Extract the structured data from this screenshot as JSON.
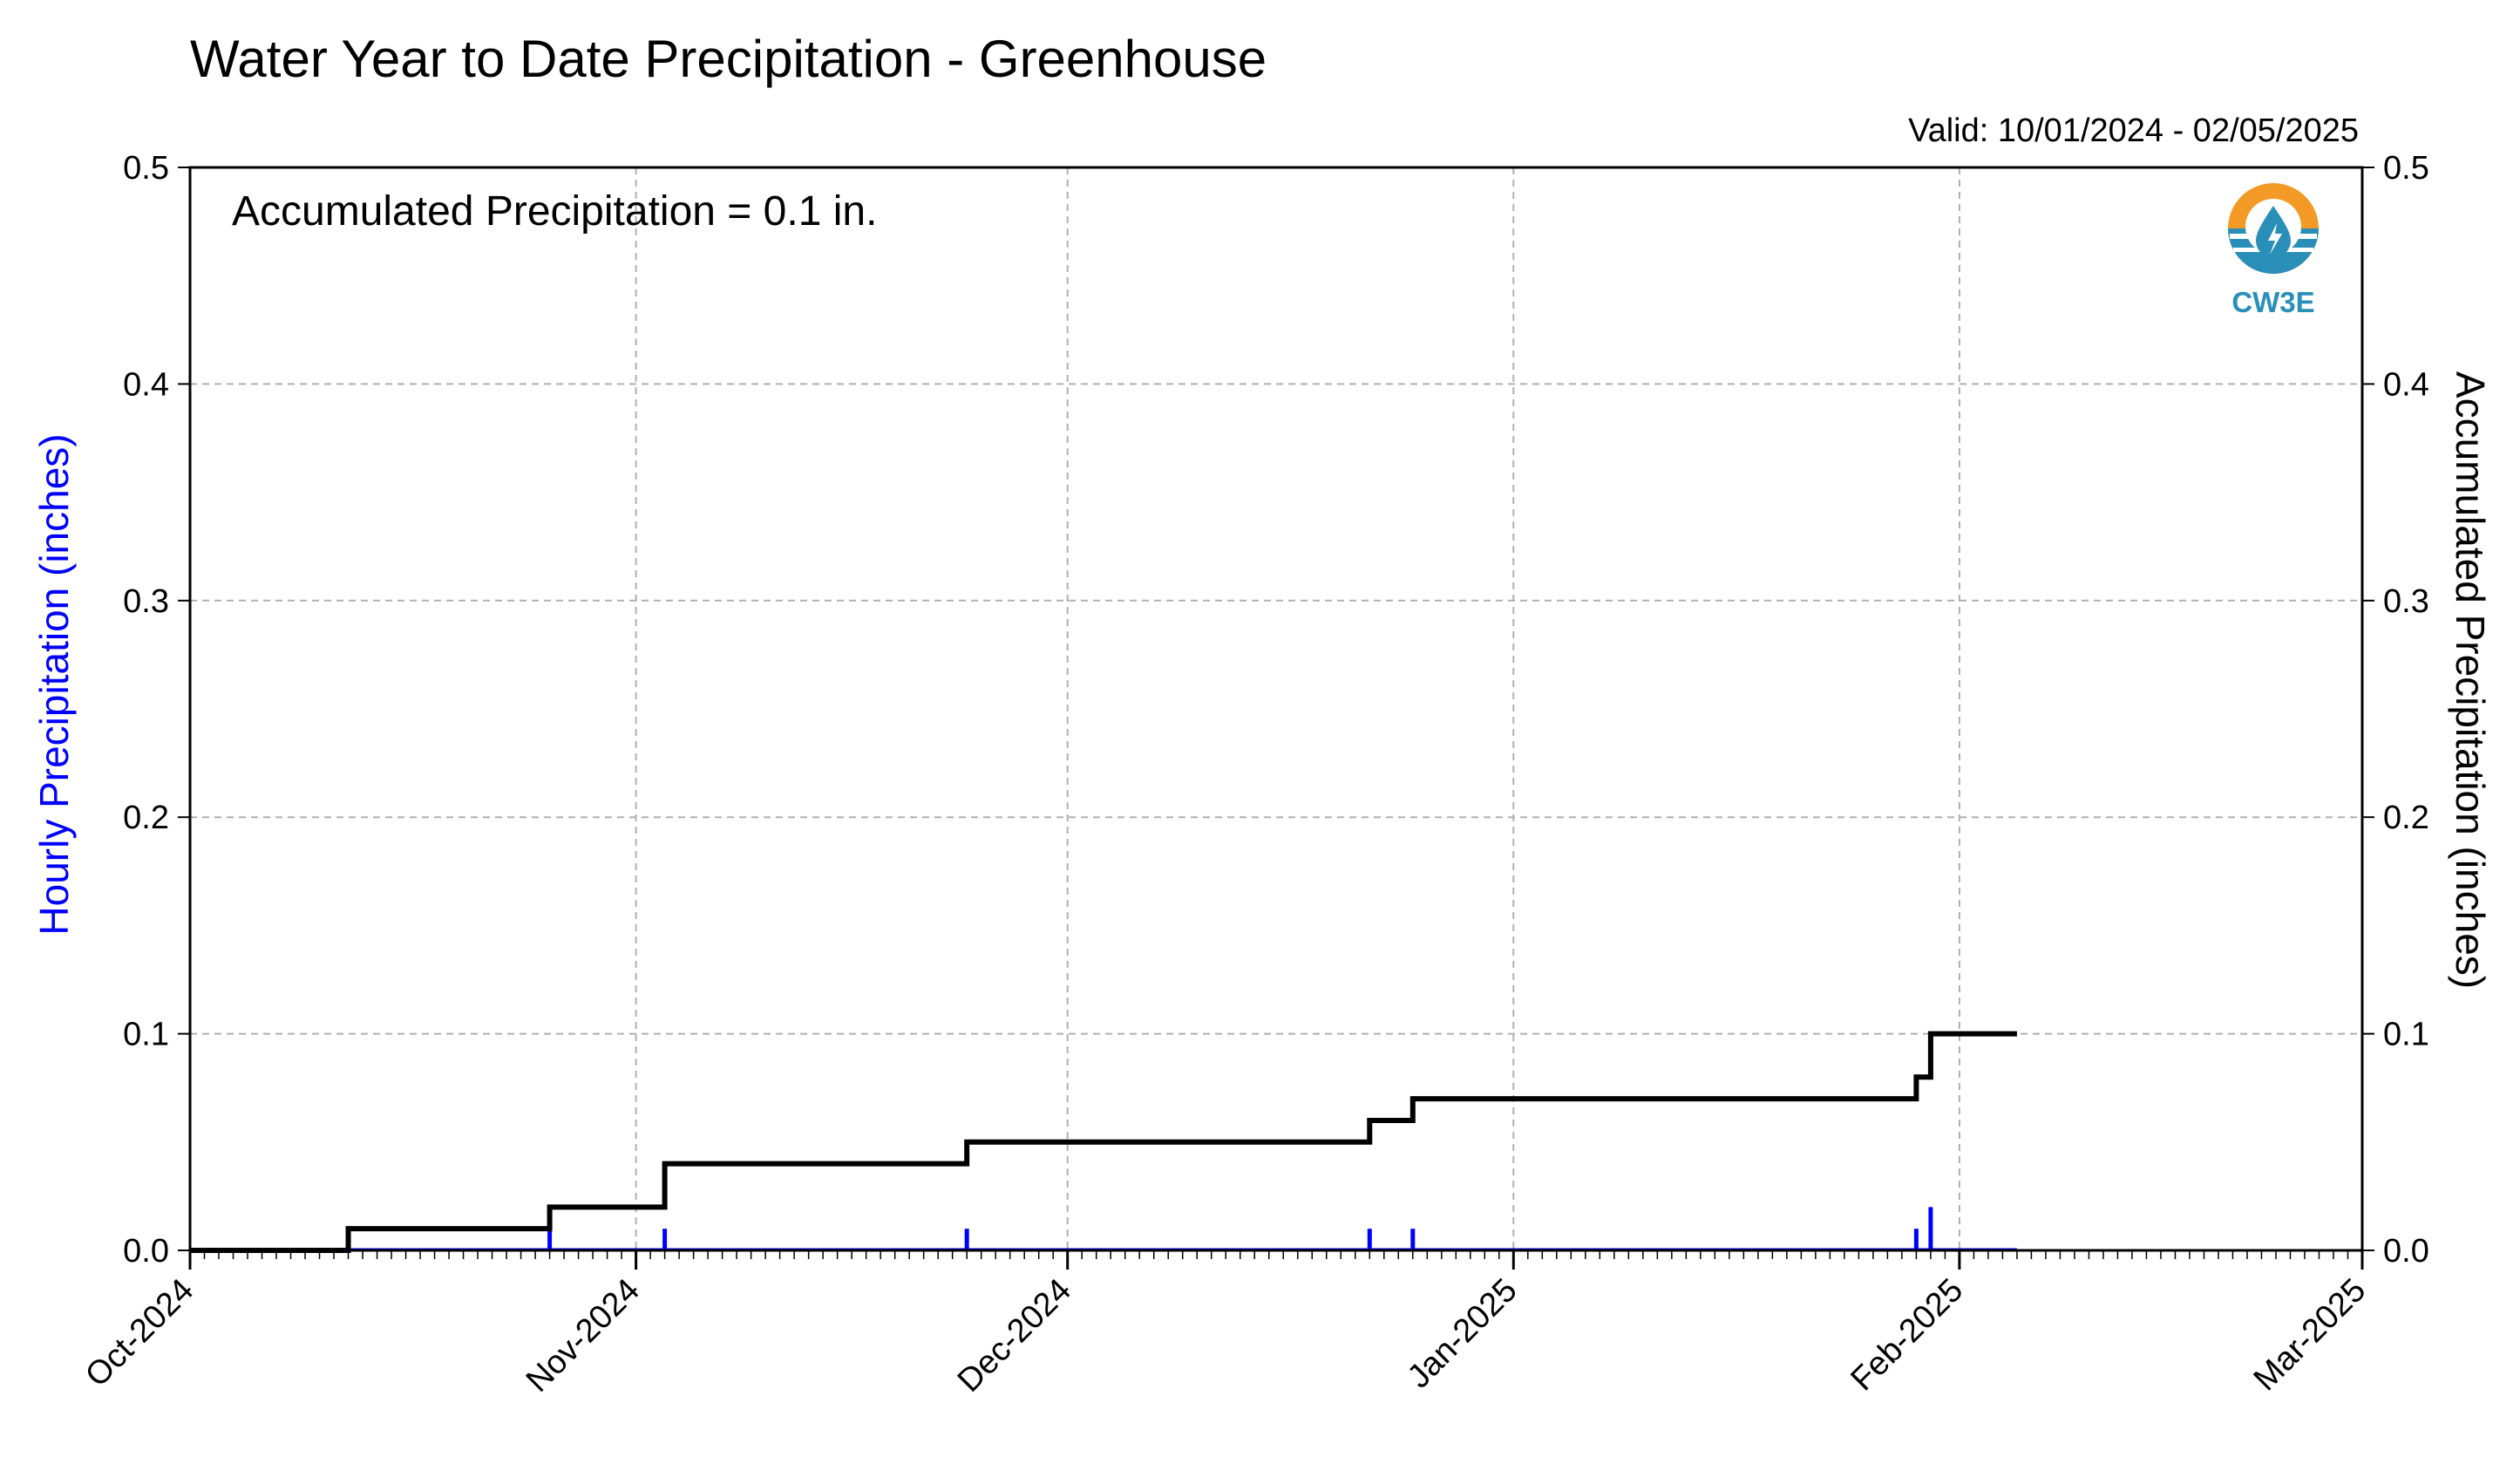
{
  "title": "Water Year to Date Precipitation - Greenhouse",
  "valid_label": "Valid: 10/01/2024 - 02/05/2025",
  "annotation": "Accumulated Precipitation = 0.1 in.",
  "logo": {
    "text": "CW3E",
    "icon": "cw3e-logo-icon"
  },
  "colors": {
    "hourly": "#0000ff",
    "accumulated": "#000000",
    "grid": "#b0b0b0",
    "logo_orange": "#f39a26",
    "logo_blue": "#2a8fb8",
    "logo_dark": "#1f6d8f"
  },
  "chart_data": {
    "type": "line",
    "x_axis": {
      "type": "date",
      "range": [
        "2024-10-01",
        "2025-03-01"
      ],
      "major_ticks": [
        {
          "date": "2024-10-01",
          "label": "Oct-2024"
        },
        {
          "date": "2024-11-01",
          "label": "Nov-2024"
        },
        {
          "date": "2024-12-01",
          "label": "Dec-2024"
        },
        {
          "date": "2025-01-01",
          "label": "Jan-2025"
        },
        {
          "date": "2025-02-01",
          "label": "Feb-2025"
        },
        {
          "date": "2025-03-01",
          "label": "Mar-2025"
        }
      ],
      "minor_ticks": "daily"
    },
    "y_left": {
      "label": "Hourly Precipitation (inches)",
      "range": [
        0,
        0.5
      ],
      "ticks": [
        "0.0",
        "0.1",
        "0.2",
        "0.3",
        "0.4",
        "0.5"
      ]
    },
    "y_right": {
      "label": "Accumulated Precipitation (inches)",
      "range": [
        0,
        0.5
      ],
      "ticks": [
        "0.0",
        "0.1",
        "0.2",
        "0.3",
        "0.4",
        "0.5"
      ]
    },
    "grid": true,
    "hourly_precipitation": {
      "axis": "left",
      "style": "bars",
      "baseline_start": "2024-10-12",
      "baseline_end": "2025-02-05",
      "points": [
        {
          "date": "2024-10-26",
          "value": 0.01
        },
        {
          "date": "2024-11-03",
          "value": 0.01
        },
        {
          "date": "2024-11-24",
          "value": 0.01
        },
        {
          "date": "2024-12-22",
          "value": 0.01
        },
        {
          "date": "2024-12-25",
          "value": 0.01
        },
        {
          "date": "2025-01-29",
          "value": 0.01
        },
        {
          "date": "2025-01-30",
          "value": 0.02
        }
      ]
    },
    "accumulated_precipitation": {
      "axis": "right",
      "style": "step",
      "points": [
        {
          "date": "2024-10-01",
          "value": 0.0
        },
        {
          "date": "2024-10-12",
          "value": 0.01
        },
        {
          "date": "2024-10-26",
          "value": 0.02
        },
        {
          "date": "2024-11-03",
          "value": 0.04
        },
        {
          "date": "2024-11-24",
          "value": 0.05
        },
        {
          "date": "2024-12-22",
          "value": 0.06
        },
        {
          "date": "2024-12-25",
          "value": 0.07
        },
        {
          "date": "2025-01-29",
          "value": 0.08
        },
        {
          "date": "2025-01-30",
          "value": 0.1
        },
        {
          "date": "2025-02-05",
          "value": 0.1
        }
      ]
    }
  }
}
